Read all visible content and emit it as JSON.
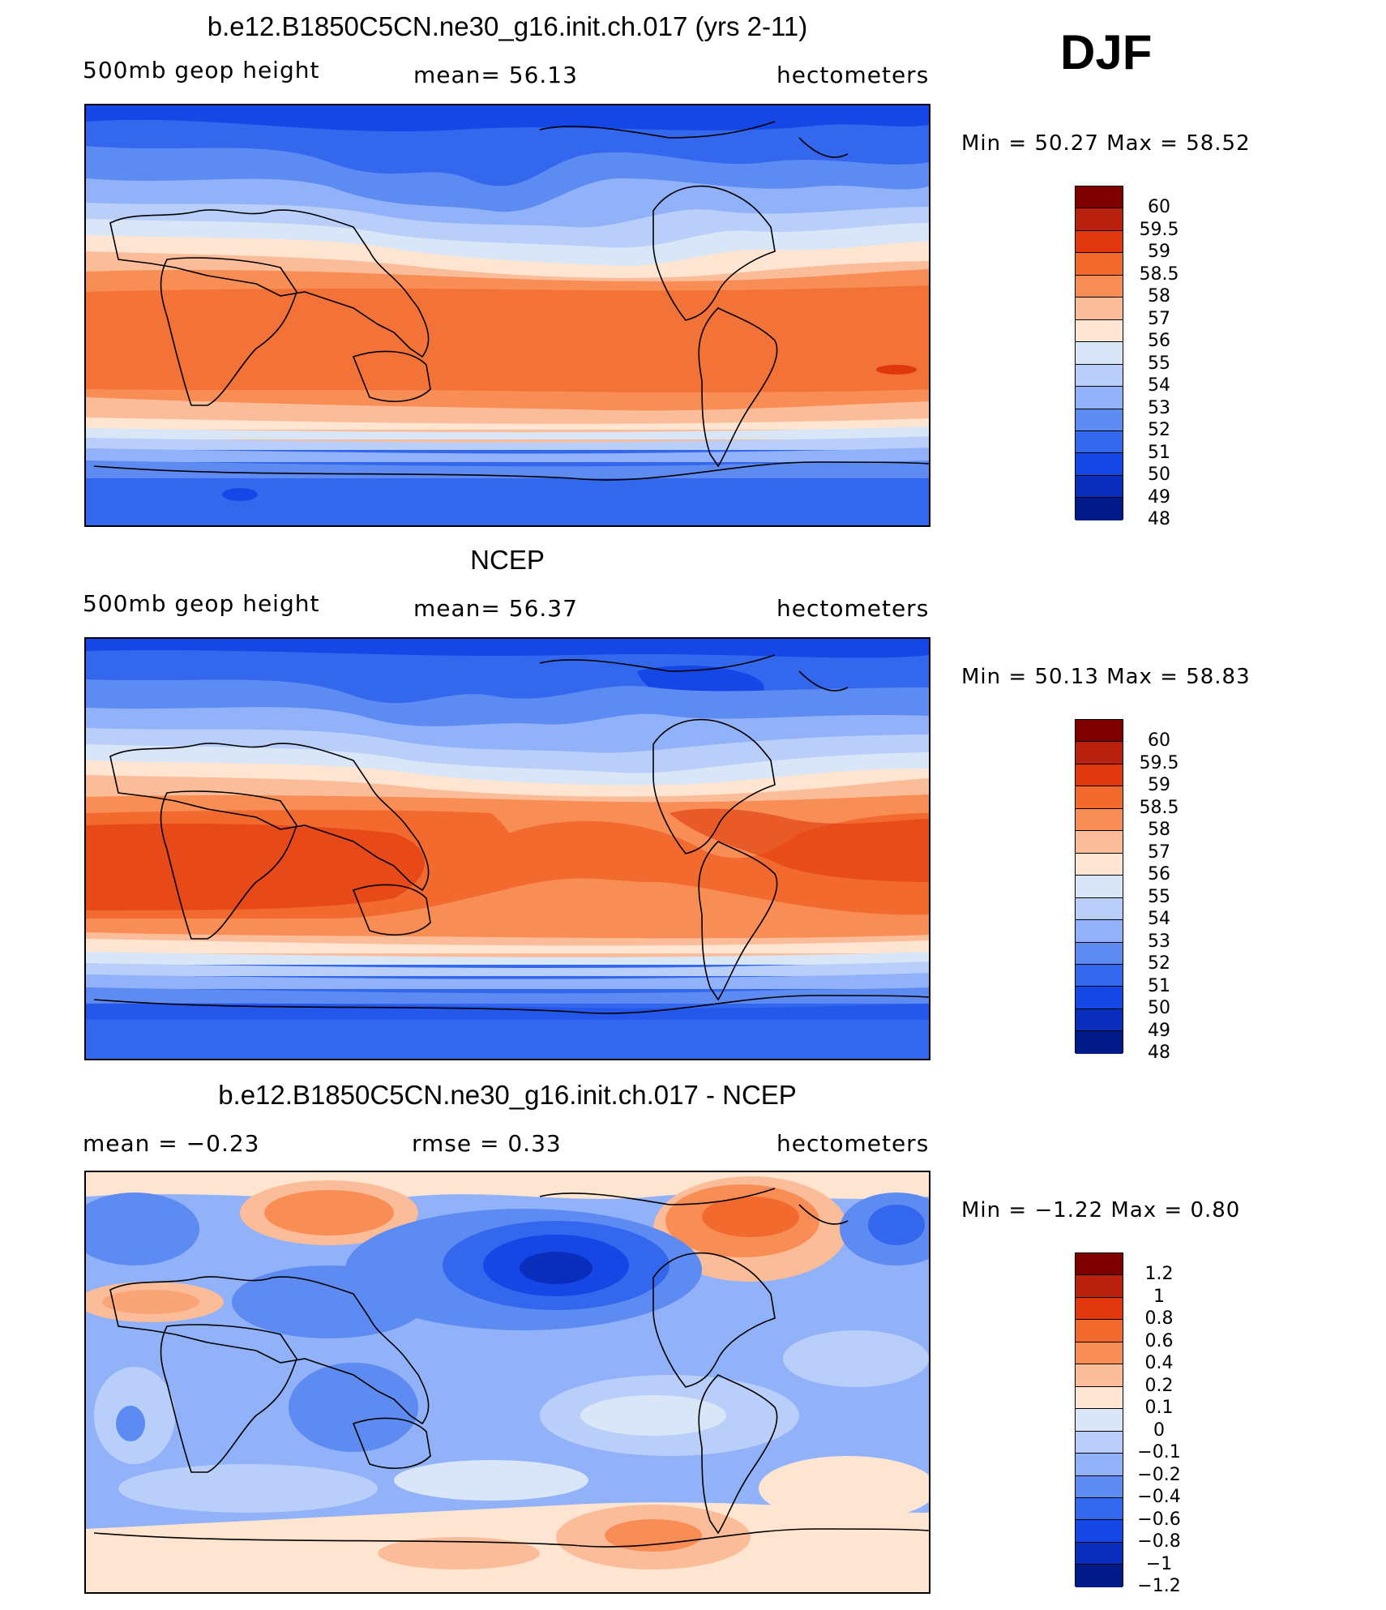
{
  "season": "DJF",
  "panels": [
    {
      "title": "b.e12.B1850C5CN.ne30_g16.init.ch.017 (yrs 2-11)",
      "left_label": "500mb  geop  height",
      "center_label": "mean=   56.13",
      "right_label": "hectometers",
      "minmax": "Min  =    50.27  Max  =    58.52",
      "colorbar": {
        "colors": [
          "#800000",
          "#b8210e",
          "#e0380c",
          "#f26a2e",
          "#f88d55",
          "#fbbd99",
          "#fee5d2",
          "#d8e6f8",
          "#b9cff9",
          "#91b1f8",
          "#5d8bf2",
          "#3368ee",
          "#1546e6",
          "#0a2ebc",
          "#001a8a"
        ],
        "labels": [
          "60",
          "59.5",
          "59",
          "58.5",
          "58",
          "57",
          "56",
          "55",
          "54",
          "53",
          "52",
          "51",
          "50",
          "49",
          "48"
        ]
      }
    },
    {
      "title": "NCEP",
      "left_label": "500mb  geop  height",
      "center_label": "mean=   56.37",
      "right_label": "hectometers",
      "minmax": "Min  =    50.13  Max  =    58.83",
      "colorbar": {
        "colors": [
          "#800000",
          "#b8210e",
          "#e0380c",
          "#f26a2e",
          "#f88d55",
          "#fbbd99",
          "#fee5d2",
          "#d8e6f8",
          "#b9cff9",
          "#91b1f8",
          "#5d8bf2",
          "#3368ee",
          "#1546e6",
          "#0a2ebc",
          "#001a8a"
        ],
        "labels": [
          "60",
          "59.5",
          "59",
          "58.5",
          "58",
          "57",
          "56",
          "55",
          "54",
          "53",
          "52",
          "51",
          "50",
          "49",
          "48"
        ]
      }
    },
    {
      "title": "b.e12.B1850C5CN.ne30_g16.init.ch.017 - NCEP",
      "left_label": "mean  =    −0.23",
      "center_label": "rmse  =     0.33",
      "right_label": "hectometers",
      "minmax": "Min  =   −1.22  Max  =     0.80",
      "colorbar": {
        "colors": [
          "#800000",
          "#b8210e",
          "#e0380c",
          "#f26a2e",
          "#f88d55",
          "#fbbd99",
          "#fee5d2",
          "#d8e6f8",
          "#b9cff9",
          "#91b1f8",
          "#5d8bf2",
          "#3368ee",
          "#1546e6",
          "#0a2ebc",
          "#001a8a"
        ],
        "labels": [
          "1.2",
          "1",
          "0.8",
          "0.6",
          "0.4",
          "0.2",
          "0.1",
          "0",
          "−0.1",
          "−0.2",
          "−0.4",
          "−0.6",
          "−0.8",
          "−1",
          "−1.2"
        ]
      }
    }
  ]
}
